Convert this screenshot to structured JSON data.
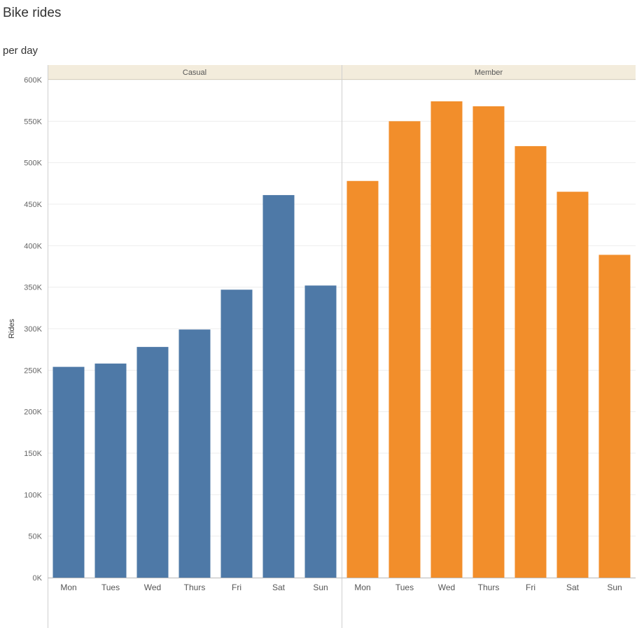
{
  "header": {
    "title": "Bike rides",
    "subtitle": "per day"
  },
  "chart_data": {
    "type": "bar",
    "ylabel": "Rides",
    "ylim": [
      0,
      600000
    ],
    "yticks": [
      {
        "value": 0,
        "label": "0K"
      },
      {
        "value": 50000,
        "label": "50K"
      },
      {
        "value": 100000,
        "label": "100K"
      },
      {
        "value": 150000,
        "label": "150K"
      },
      {
        "value": 200000,
        "label": "200K"
      },
      {
        "value": 250000,
        "label": "250K"
      },
      {
        "value": 300000,
        "label": "300K"
      },
      {
        "value": 350000,
        "label": "350K"
      },
      {
        "value": 400000,
        "label": "400K"
      },
      {
        "value": 450000,
        "label": "450K"
      },
      {
        "value": 500000,
        "label": "500K"
      },
      {
        "value": 550000,
        "label": "550K"
      },
      {
        "value": 600000,
        "label": "600K"
      }
    ],
    "grid": "horizontal",
    "panels": [
      {
        "name": "Casual",
        "color": "#4e79a7",
        "categories": [
          "Mon",
          "Tues",
          "Wed",
          "Thurs",
          "Fri",
          "Sat",
          "Sun"
        ],
        "values": [
          254000,
          258000,
          278000,
          299000,
          347000,
          461000,
          352000
        ]
      },
      {
        "name": "Member",
        "color": "#f28e2b",
        "categories": [
          "Mon",
          "Tues",
          "Wed",
          "Thurs",
          "Fri",
          "Sat",
          "Sun"
        ],
        "values": [
          478000,
          550000,
          574000,
          568000,
          520000,
          465000,
          389000
        ]
      }
    ]
  }
}
